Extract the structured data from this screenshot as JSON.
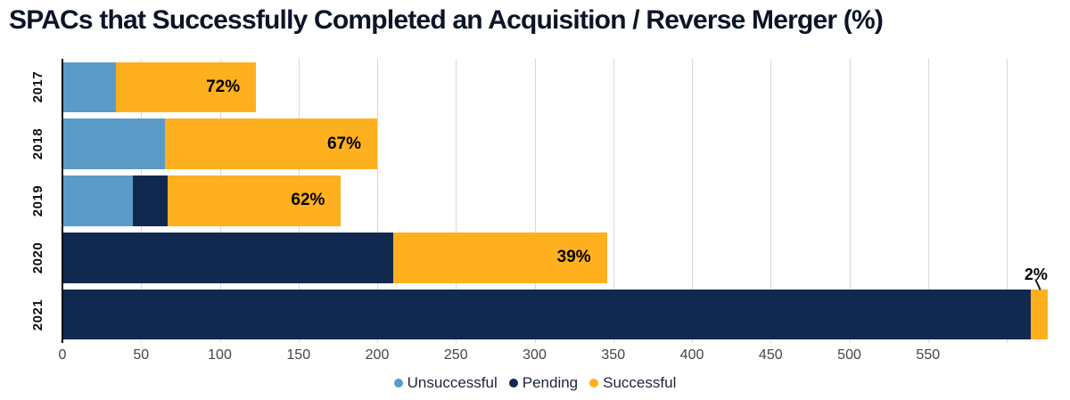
{
  "title": "SPACs that Successfully Completed an Acquisition / Reverse Merger (%)",
  "colors": {
    "unsuccessful": "#5B9BC8",
    "pending": "#12294F",
    "successful": "#FFB01E",
    "grid": "#D9D9D9",
    "axis": "#000000",
    "title_text": "#0C1527"
  },
  "chart_data": {
    "type": "bar",
    "orientation": "horizontal",
    "stacked": true,
    "title": "SPACs that Successfully Completed an Acquisition / Reverse Merger (%)",
    "categories": [
      "2017",
      "2018",
      "2019",
      "2020",
      "2021"
    ],
    "series": [
      {
        "name": "Unsuccessful",
        "color_key": "unsuccessful",
        "values": [
          34,
          65,
          45,
          0,
          0
        ]
      },
      {
        "name": "Pending",
        "color_key": "pending",
        "values": [
          0,
          0,
          22,
          210,
          615
        ]
      },
      {
        "name": "Successful",
        "color_key": "successful",
        "values": [
          89,
          135,
          110,
          136,
          11
        ]
      }
    ],
    "bar_labels": [
      "72%",
      "67%",
      "62%",
      "39%",
      "2%"
    ],
    "x_ticks": [
      0,
      50,
      100,
      150,
      200,
      250,
      300,
      350,
      400,
      450,
      500,
      550
    ],
    "grid_ticks": [
      0,
      50,
      100,
      150,
      200,
      250,
      300,
      350,
      400,
      450,
      500,
      550,
      600
    ],
    "xlim": [
      0,
      630
    ],
    "grid": true,
    "legend": [
      "Unsuccessful",
      "Pending",
      "Successful"
    ],
    "legend_position": "bottom"
  }
}
